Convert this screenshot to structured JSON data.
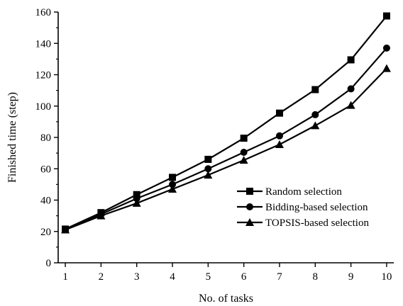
{
  "chart_data": {
    "type": "line",
    "xlabel": "No. of tasks",
    "ylabel": "Finished time (step)",
    "x": [
      1,
      2,
      3,
      4,
      5,
      6,
      7,
      8,
      9,
      10
    ],
    "xlim": [
      0.8,
      10.2
    ],
    "ylim": [
      0,
      160
    ],
    "xticks": [
      1,
      2,
      3,
      4,
      5,
      6,
      7,
      8,
      9,
      10
    ],
    "yticks": [
      0,
      20,
      40,
      60,
      80,
      100,
      120,
      140,
      160
    ],
    "grid": false,
    "legend_position": "lower-right",
    "series": [
      {
        "name": "Random selection",
        "marker": "square",
        "color": "#000000",
        "values": [
          21.5,
          32,
          43.5,
          54.5,
          66,
          79.5,
          95.5,
          110.5,
          129.5,
          157.5
        ]
      },
      {
        "name": "Bidding-based selection",
        "marker": "circle",
        "color": "#000000",
        "values": [
          21.5,
          31,
          41,
          50,
          60,
          70.5,
          81,
          94.5,
          111,
          137
        ]
      },
      {
        "name": "TOPSIS-based selection",
        "marker": "triangle",
        "color": "#000000",
        "values": [
          21,
          30,
          38,
          47,
          56,
          65.5,
          75.5,
          87.5,
          100.5,
          124
        ]
      }
    ]
  }
}
